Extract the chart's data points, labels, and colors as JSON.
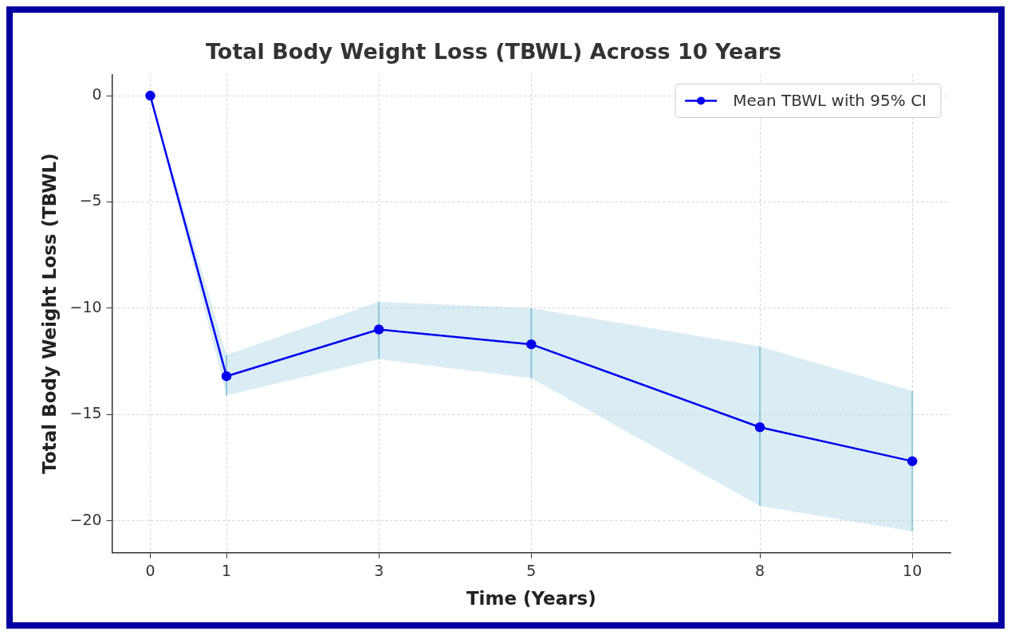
{
  "chart_data": {
    "type": "line",
    "title": "Total Body Weight Loss (TBWL) Across 10 Years",
    "xlabel": "Time (Years)",
    "ylabel": "Total Body Weight Loss (TBWL)",
    "x": [
      0,
      1,
      3,
      5,
      8,
      10
    ],
    "series": [
      {
        "name": "Mean TBWL with 95% CI",
        "color": "#0000ee",
        "values": [
          0,
          -13.2,
          -11.0,
          -11.7,
          -15.6,
          -17.2
        ],
        "lower": [
          0,
          -14.1,
          -12.4,
          -13.3,
          -19.3,
          -20.5
        ],
        "upper": [
          0,
          -12.2,
          -9.7,
          -10.0,
          -11.8,
          -13.9
        ],
        "errors": [
          null,
          [
            -14.1,
            -12.2
          ],
          [
            -12.4,
            -9.7
          ],
          [
            -13.3,
            -10.0
          ],
          [
            -19.3,
            -11.8
          ],
          [
            -20.5,
            -13.9
          ]
        ]
      }
    ],
    "xlim": [
      -0.5,
      10.5
    ],
    "xticks": [
      0,
      1,
      3,
      5,
      8,
      10
    ],
    "ylim": [
      -21.5,
      1.0
    ],
    "yticks": [
      0,
      -5,
      -10,
      -15,
      -20
    ],
    "grid": true,
    "legend": "top right",
    "marker": "circle",
    "line_style": "solid"
  }
}
